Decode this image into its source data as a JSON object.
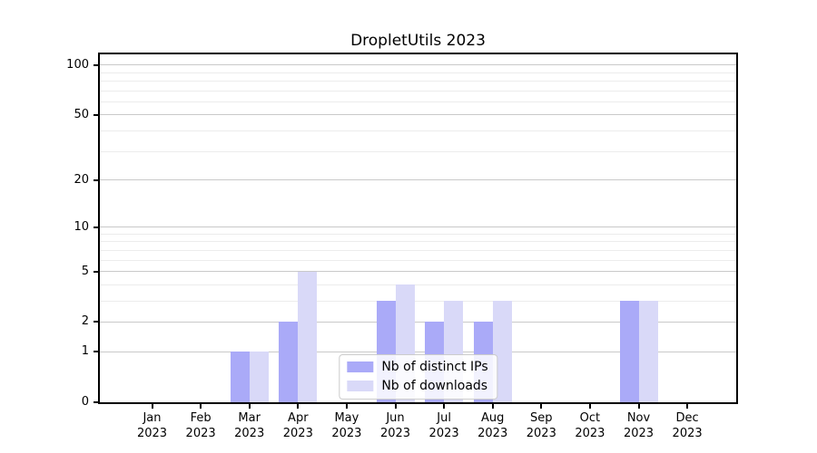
{
  "chart_data": {
    "type": "bar",
    "title": "DropletUtils 2023",
    "categories": [
      "Jan 2023",
      "Feb 2023",
      "Mar 2023",
      "Apr 2023",
      "May 2023",
      "Jun 2023",
      "Jul 2023",
      "Aug 2023",
      "Sep 2023",
      "Oct 2023",
      "Nov 2023",
      "Dec 2023"
    ],
    "categories_month": [
      "Jan",
      "Feb",
      "Mar",
      "Apr",
      "May",
      "Jun",
      "Jul",
      "Aug",
      "Sep",
      "Oct",
      "Nov",
      "Dec"
    ],
    "categories_year": [
      "2023",
      "2023",
      "2023",
      "2023",
      "2023",
      "2023",
      "2023",
      "2023",
      "2023",
      "2023",
      "2023",
      "2023"
    ],
    "series": [
      {
        "name": "Nb of distinct IPs",
        "color": "#aaaaf8",
        "values": [
          0,
          0,
          1,
          2,
          0,
          3,
          2,
          2,
          0,
          0,
          3,
          0
        ]
      },
      {
        "name": "Nb of downloads",
        "color": "#d9d9f8",
        "values": [
          0,
          0,
          1,
          5,
          0,
          4,
          3,
          3,
          0,
          0,
          3,
          0
        ]
      }
    ],
    "xlabel": "",
    "ylabel": "",
    "yscale": "log1p",
    "ylim": [
      0,
      116
    ],
    "yticks_major": [
      0,
      1,
      2,
      5,
      10,
      20,
      50,
      100
    ],
    "yticks_minor": [
      3,
      4,
      6,
      7,
      8,
      9,
      30,
      40,
      60,
      70,
      80,
      90
    ],
    "grid": true,
    "legend_position": "bottom-center"
  },
  "colors": {
    "background": "#ffffff",
    "axis": "#000000",
    "major_grid": "#c9c9c9",
    "minor_grid": "#ececec",
    "legend_border": "#cccccc",
    "series_dark": "#aaaaf8",
    "series_light": "#d9d9f8"
  }
}
